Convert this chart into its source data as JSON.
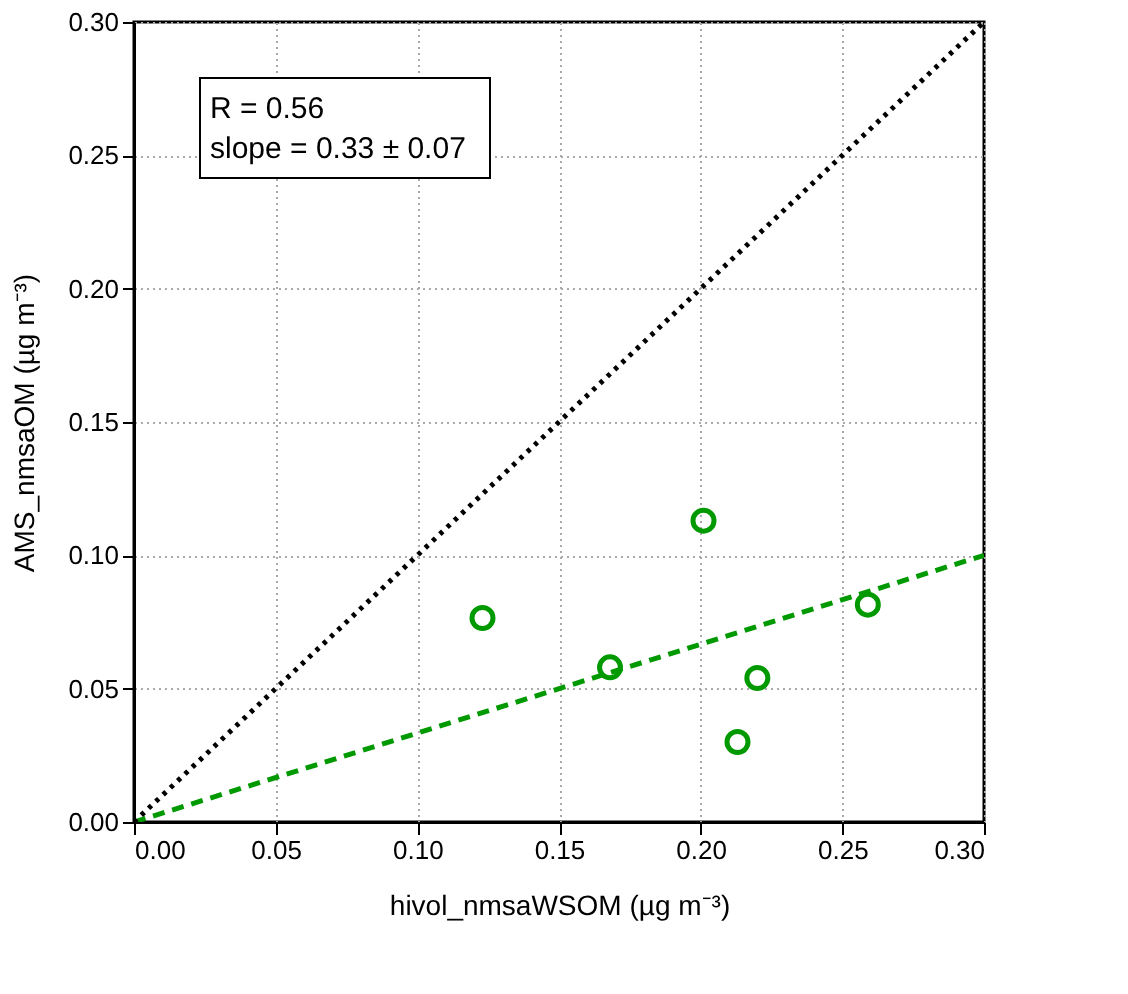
{
  "chart_data": {
    "type": "scatter",
    "xlabel": "hivol_nmsaWSOM (µg m⁻³)",
    "ylabel": "AMS_nmsaOM (µg m⁻³)",
    "annotations": [
      "R = 0.56",
      "slope = 0.33 ± 0.07"
    ],
    "series": [
      {
        "color": "#009900",
        "marker": "circle",
        "x": [
          0.123,
          0.168,
          0.201,
          0.213,
          0.22,
          0.259
        ],
        "values": [
          0.0765,
          0.058,
          0.113,
          0.03,
          0.054,
          0.0815
        ]
      },
      {
        "type": "line",
        "color": "#009900",
        "line_style": "dashed",
        "marker": "none",
        "x": [
          0,
          0.3
        ],
        "values": [
          0,
          0.1
        ]
      },
      {
        "type": "line",
        "color": "#000000",
        "line_style": "dotted",
        "marker": "none",
        "x": [
          0,
          0.3
        ],
        "values": [
          0,
          0.3
        ]
      }
    ],
    "xlim": [
      0,
      0.3
    ],
    "ylim": [
      0,
      0.3
    ],
    "xticks": [
      {
        "value": 0,
        "label": "0.00"
      },
      0.05,
      {
        "value": 0.1,
        "label": "0.10"
      },
      0.15,
      {
        "value": 0.2,
        "label": "0.20"
      },
      0.25,
      {
        "value": 0.3,
        "label": "0.30"
      }
    ],
    "yticks": [
      {
        "value": 0,
        "label": "0.00"
      },
      0.05,
      {
        "value": 0.1,
        "label": "0.10"
      },
      0.15,
      {
        "value": 0.2,
        "label": "0.20"
      },
      0.25,
      {
        "value": 0.3,
        "label": "0.30"
      }
    ],
    "grid": true
  }
}
